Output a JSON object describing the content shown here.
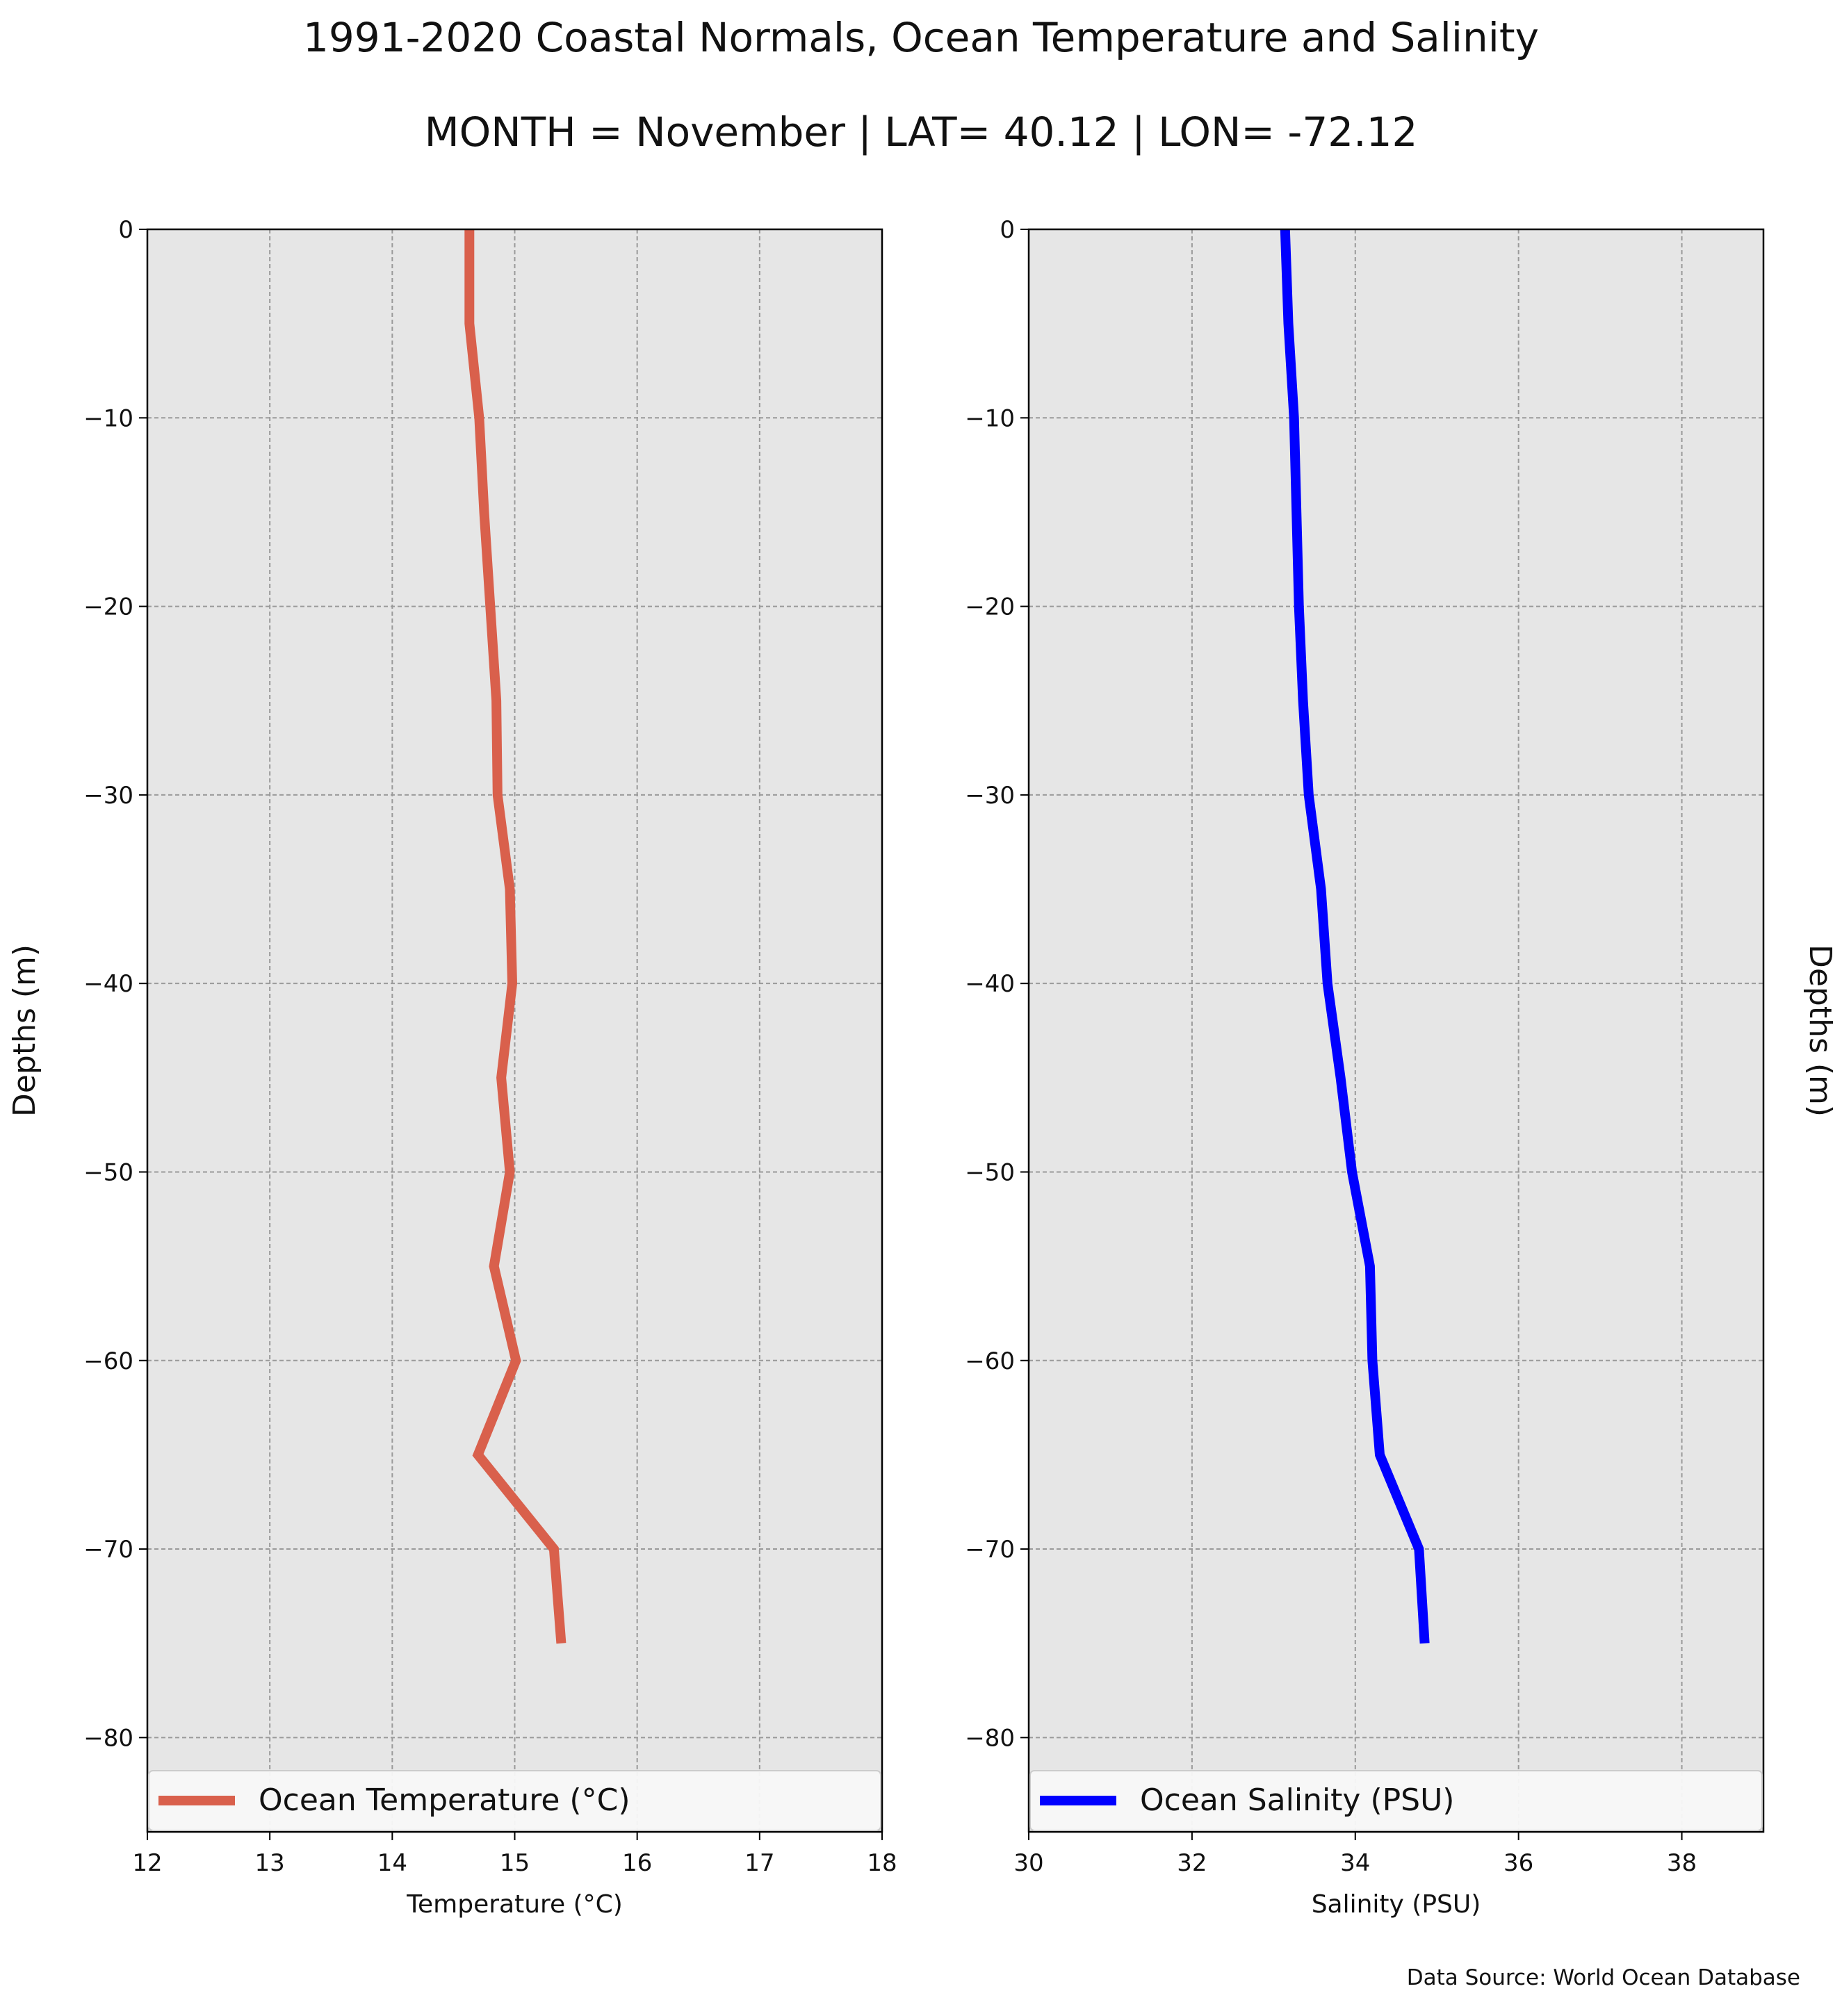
{
  "figure": {
    "title": "1991-2020 Coastal Normals, Ocean Temperature and Salinity",
    "subtitle": "MONTH = November | LAT= 40.12 | LON= -72.12",
    "source": "Data Source: World Ocean Database",
    "panel_background": "#e6e6e6",
    "grid_color": "#9a9a9a"
  },
  "chart_data": [
    {
      "type": "line",
      "xlabel": "Temperature ($^\\circ$C)",
      "xlabel_display": "Temperature (°C)",
      "ylabel": "Depths (m)",
      "ylabel_side": "left",
      "xlim": [
        12,
        18
      ],
      "ylim": [
        -85,
        0
      ],
      "xticks": [
        12,
        13,
        14,
        15,
        16,
        17,
        18
      ],
      "xtick_labels": [
        "12",
        "13",
        "14",
        "15",
        "16",
        "17",
        "18"
      ],
      "yticks": [
        0,
        -10,
        -20,
        -30,
        -40,
        -50,
        -60,
        -70,
        -80
      ],
      "ytick_labels": [
        "0",
        "−10",
        "−20",
        "−30",
        "−40",
        "−50",
        "−60",
        "−70",
        "−80"
      ],
      "grid": true,
      "legend": "lower-center",
      "series": [
        {
          "name": "Ocean Temperature (°C)",
          "color": "#d9604c",
          "x": [
            14.63,
            14.63,
            14.71,
            14.75,
            14.8,
            14.85,
            14.86,
            14.96,
            14.98,
            14.89,
            14.96,
            14.83,
            15.01,
            14.7,
            15.32,
            15.38
          ],
          "y": [
            0,
            -5,
            -10,
            -15,
            -20,
            -25,
            -30,
            -35,
            -40,
            -45,
            -50,
            -55,
            -60,
            -65,
            -70,
            -75
          ]
        }
      ]
    },
    {
      "type": "line",
      "xlabel": "Salinity (PSU)",
      "ylabel": "Depths (m)",
      "ylabel_side": "right",
      "xlim": [
        30,
        39
      ],
      "ylim": [
        -85,
        0
      ],
      "xticks": [
        30,
        32,
        34,
        36,
        38
      ],
      "xtick_labels": [
        "30",
        "32",
        "34",
        "36",
        "38"
      ],
      "yticks": [
        0,
        -10,
        -20,
        -30,
        -40,
        -50,
        -60,
        -70,
        -80
      ],
      "ytick_labels": [
        "0",
        "−10",
        "−20",
        "−30",
        "−40",
        "−50",
        "−60",
        "−70",
        "−80"
      ],
      "grid": true,
      "legend": "lower-center",
      "series": [
        {
          "name": "Ocean Salinity (PSU)",
          "color": "#0000ff",
          "x": [
            33.14,
            33.18,
            33.25,
            33.28,
            33.31,
            33.36,
            33.43,
            33.58,
            33.66,
            33.82,
            33.96,
            34.18,
            34.21,
            34.3,
            34.78,
            34.85
          ],
          "y": [
            0,
            -5,
            -10,
            -15,
            -20,
            -25,
            -30,
            -35,
            -40,
            -45,
            -50,
            -55,
            -60,
            -65,
            -70,
            -75
          ]
        }
      ]
    }
  ]
}
